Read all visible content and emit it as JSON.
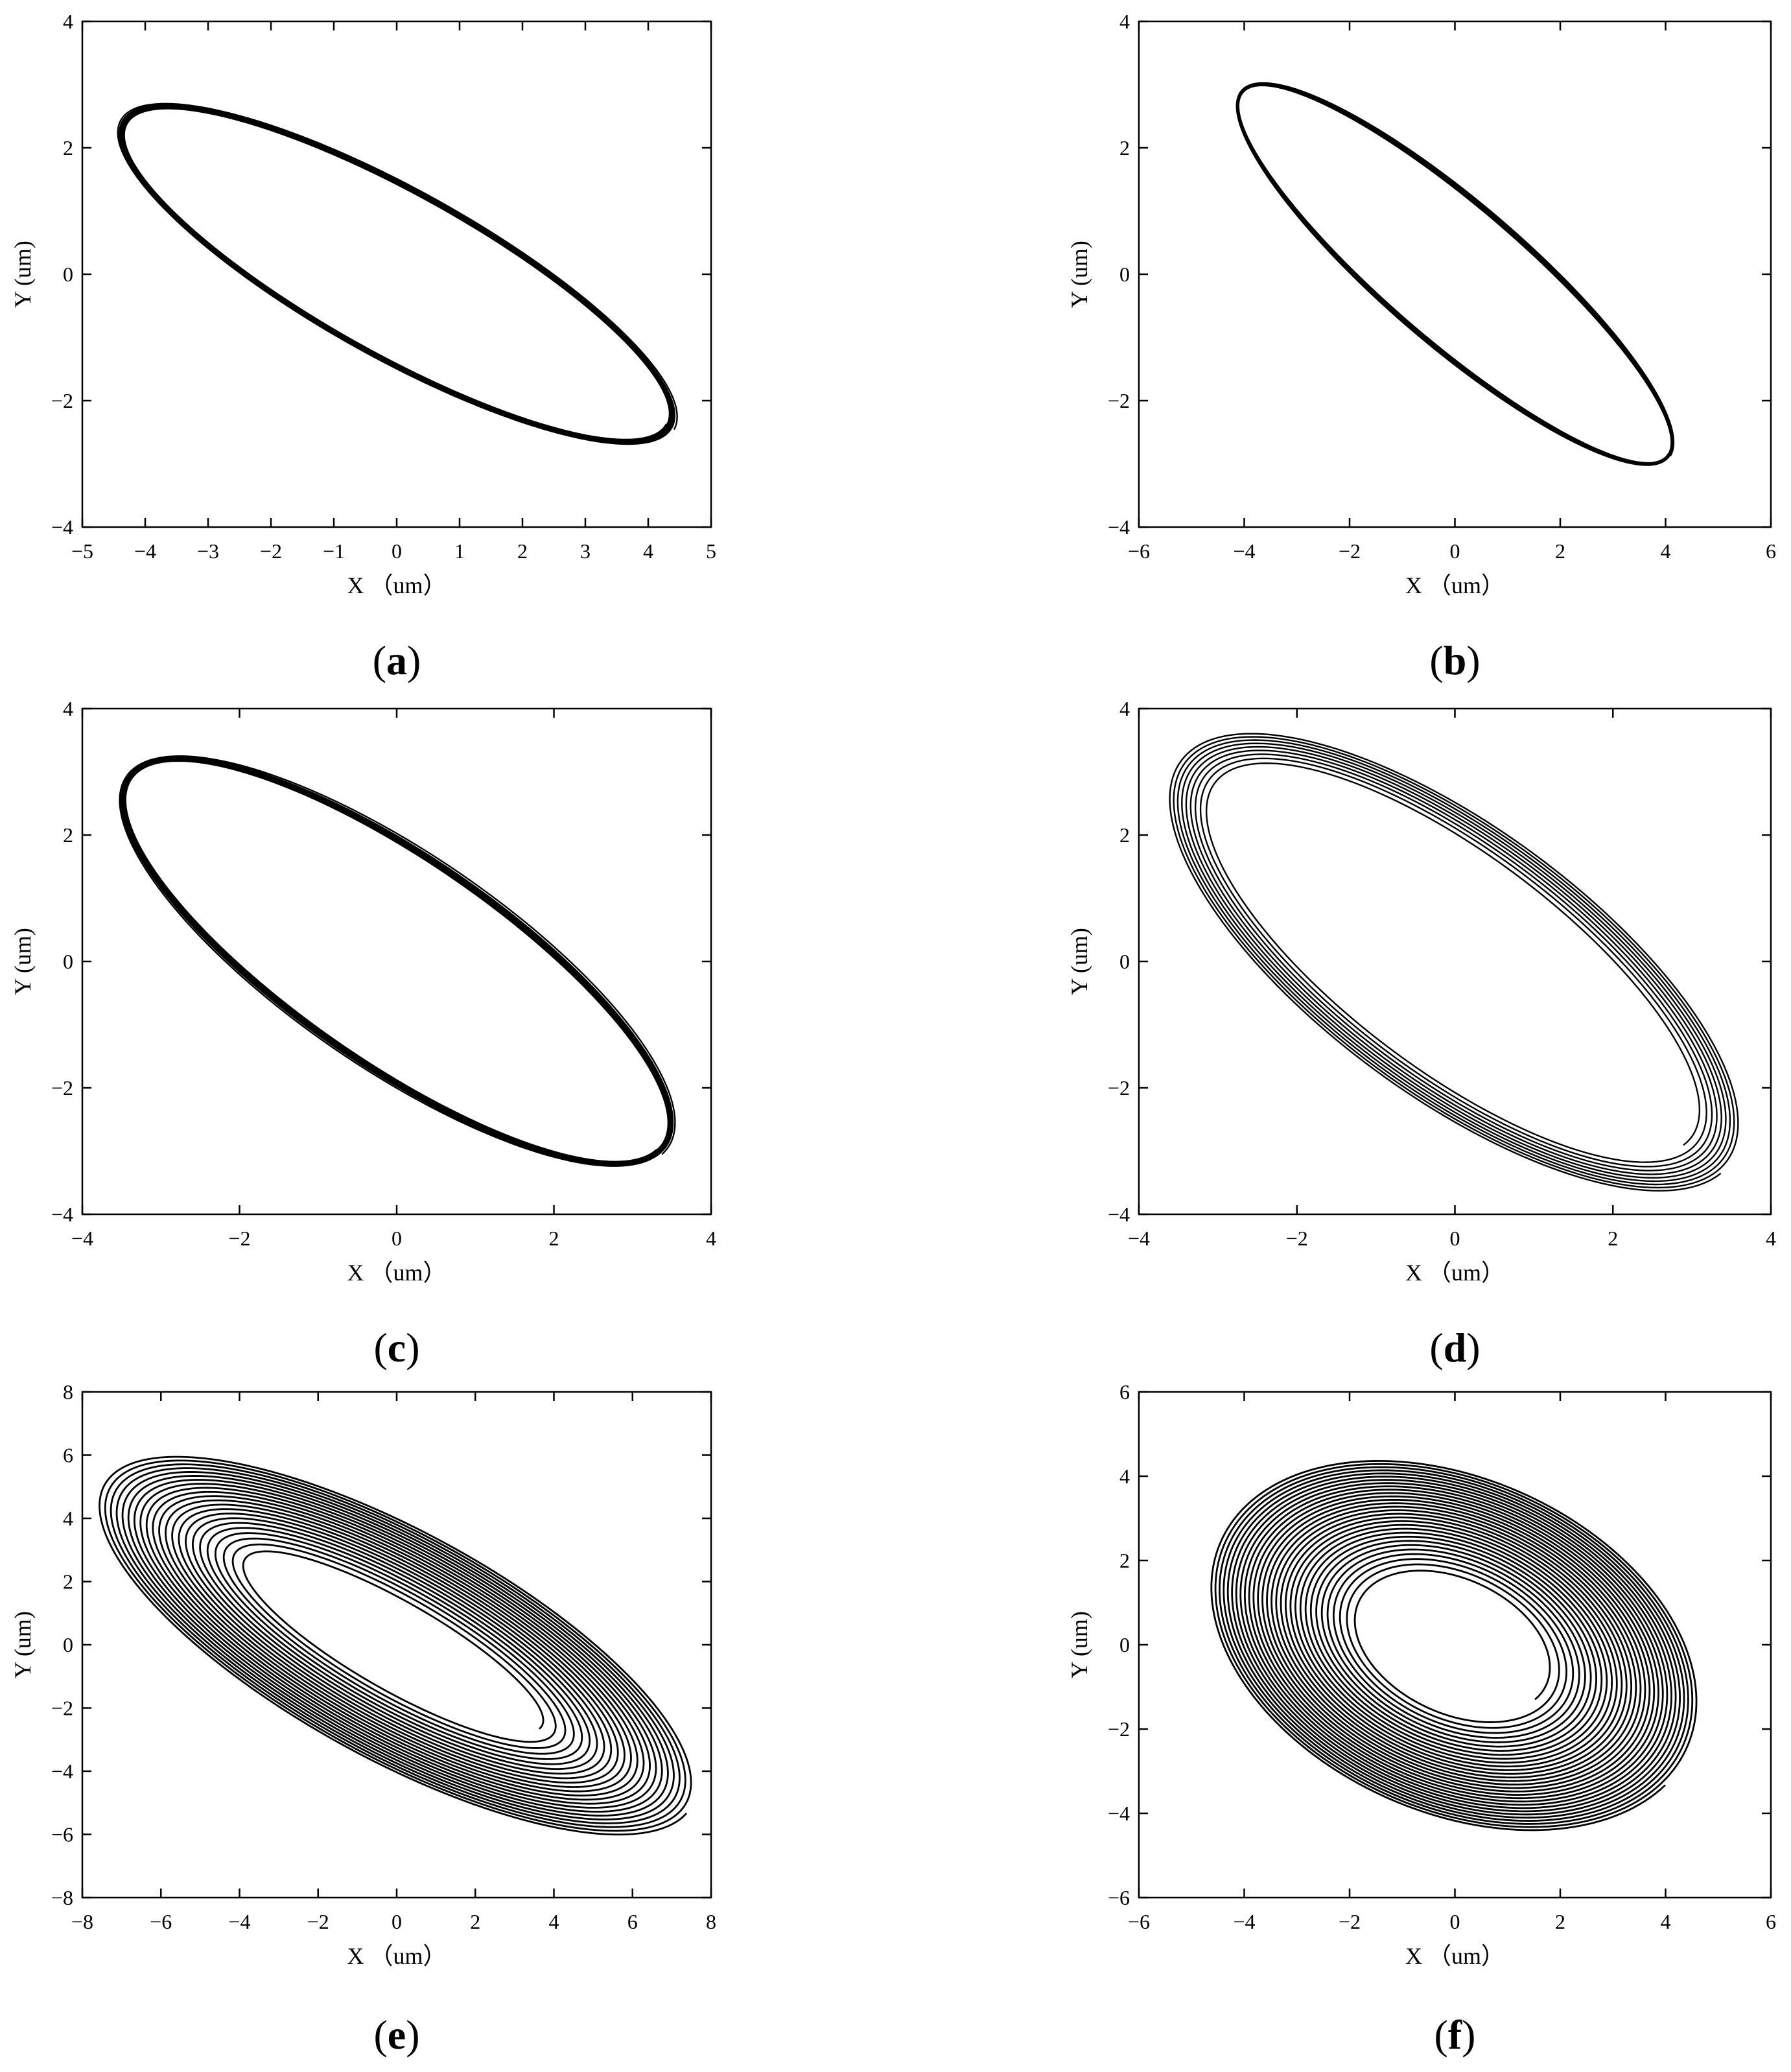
{
  "chart_data": [
    {
      "id": "a",
      "type": "line",
      "panel_label": "a",
      "xlabel": "X （um）",
      "ylabel": "Y (um)",
      "xlim": [
        -5,
        5
      ],
      "ylim": [
        -4,
        4
      ],
      "xticks": [
        -5,
        -4,
        -3,
        -2,
        -1,
        0,
        1,
        2,
        3,
        4,
        5
      ],
      "yticks": [
        -4,
        -2,
        0,
        2,
        4
      ],
      "orbit": {
        "kind": "converging",
        "semi_major_outer": 5.05,
        "semi_major_inner": 4.9,
        "semi_minor_outer": 1.35,
        "semi_minor_inner": 1.25,
        "tilt_deg": -29,
        "loops": 7
      }
    },
    {
      "id": "b",
      "type": "line",
      "panel_label": "b",
      "xlabel": "X （um）",
      "ylabel": "Y (um)",
      "xlim": [
        -6,
        6
      ],
      "ylim": [
        -4,
        4
      ],
      "xticks": [
        -6,
        -4,
        -2,
        0,
        2,
        4,
        6
      ],
      "yticks": [
        -4,
        -2,
        0,
        2,
        4
      ],
      "orbit": {
        "kind": "converging",
        "semi_major_outer": 5.0,
        "semi_major_inner": 4.95,
        "semi_minor_outer": 1.22,
        "semi_minor_inner": 1.12,
        "tilt_deg": -35,
        "loops": 7
      }
    },
    {
      "id": "c",
      "type": "line",
      "panel_label": "c",
      "xlabel": "X （um）",
      "ylabel": "Y (um)",
      "xlim": [
        -4,
        4
      ],
      "ylim": [
        -4,
        4
      ],
      "xticks": [
        -4,
        -2,
        0,
        2,
        4
      ],
      "yticks": [
        -4,
        -2,
        0,
        2,
        4
      ],
      "orbit": {
        "kind": "converging",
        "semi_major_outer": 4.55,
        "semi_major_inner": 4.45,
        "semi_minor_outer": 1.6,
        "semi_minor_inner": 1.45,
        "tilt_deg": -42,
        "loops": 7
      }
    },
    {
      "id": "d",
      "type": "line",
      "panel_label": "d",
      "xlabel": "X （um）",
      "ylabel": "Y (um)",
      "xlim": [
        -4,
        4
      ],
      "ylim": [
        -4,
        4
      ],
      "xticks": [
        -4,
        -2,
        0,
        2,
        4
      ],
      "yticks": [
        -4,
        -2,
        0,
        2,
        4
      ],
      "orbit": {
        "kind": "growing",
        "semi_major_outer": 4.75,
        "semi_major_inner": 4.1,
        "semi_minor_outer": 1.95,
        "semi_minor_inner": 1.5,
        "tilt_deg": -45,
        "loops": 9
      }
    },
    {
      "id": "e",
      "type": "line",
      "panel_label": "e",
      "xlabel": "X （um）",
      "ylabel": "Y (um)",
      "xlim": [
        -8,
        8
      ],
      "ylim": [
        -8,
        8
      ],
      "xticks": [
        -8,
        -6,
        -4,
        -2,
        0,
        2,
        4,
        6,
        8
      ],
      "yticks": [
        -8,
        -6,
        -4,
        -2,
        0,
        2,
        4,
        6,
        8
      ],
      "orbit": {
        "kind": "growing",
        "semi_major_outer": 9.1,
        "semi_major_inner": 4.5,
        "semi_minor_outer": 3.4,
        "semi_minor_inner": 1.2,
        "tilt_deg": -36,
        "loops": 22
      }
    },
    {
      "id": "f",
      "type": "line",
      "panel_label": "f",
      "xlabel": "X （um）",
      "ylabel": "Y (um)",
      "xlim": [
        -6,
        6
      ],
      "ylim": [
        -6,
        6
      ],
      "xticks": [
        -6,
        -4,
        -2,
        0,
        2,
        4,
        6
      ],
      "yticks": [
        -6,
        -4,
        -2,
        0,
        2,
        4,
        6
      ],
      "orbit": {
        "kind": "growing",
        "semi_major_outer": 5.2,
        "semi_major_inner": 2.0,
        "semi_minor_outer": 3.75,
        "semi_minor_inner": 1.4,
        "tilt_deg": -40,
        "loops": 30
      }
    }
  ]
}
